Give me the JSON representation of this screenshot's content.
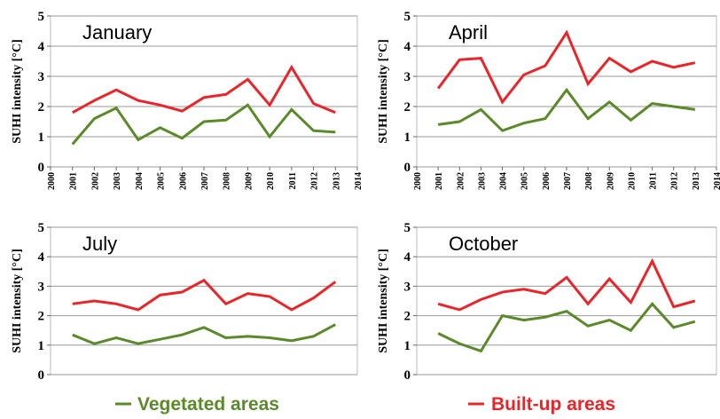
{
  "chart_data": [
    {
      "type": "line",
      "title": "January",
      "ylabel": "SUHI intensity [°C]",
      "x": [
        2001,
        2002,
        2003,
        2004,
        2005,
        2006,
        2007,
        2008,
        2009,
        2010,
        2011,
        2012,
        2013
      ],
      "series": [
        {
          "name": "Vegetated areas",
          "color": "#5a8a2a",
          "values": [
            0.75,
            1.6,
            1.95,
            0.9,
            1.3,
            0.95,
            1.5,
            1.55,
            2.05,
            1.0,
            1.9,
            1.2,
            1.15
          ]
        },
        {
          "name": "Built-up areas",
          "color": "#e8262a",
          "values": [
            1.8,
            2.2,
            2.55,
            2.2,
            2.05,
            1.85,
            2.3,
            2.4,
            2.9,
            2.05,
            3.3,
            2.1,
            1.8
          ]
        }
      ],
      "xlim": [
        2000,
        2014
      ],
      "xticks": [
        2000,
        2001,
        2002,
        2003,
        2004,
        2005,
        2006,
        2007,
        2008,
        2009,
        2010,
        2011,
        2012,
        2013,
        2014
      ],
      "ylim": [
        0,
        5
      ],
      "yticks": [
        0,
        1,
        2,
        3,
        4,
        5
      ],
      "grid": true
    },
    {
      "type": "line",
      "title": "April",
      "ylabel": "SUHI intensity [°C]",
      "x": [
        2001,
        2002,
        2003,
        2004,
        2005,
        2006,
        2007,
        2008,
        2009,
        2010,
        2011,
        2012,
        2013
      ],
      "series": [
        {
          "name": "Vegetated areas",
          "color": "#5a8a2a",
          "values": [
            1.4,
            1.5,
            1.9,
            1.2,
            1.45,
            1.6,
            2.55,
            1.6,
            2.15,
            1.55,
            2.1,
            2.0,
            1.9
          ]
        },
        {
          "name": "Built-up areas",
          "color": "#e8262a",
          "values": [
            2.6,
            3.55,
            3.6,
            2.15,
            3.05,
            3.35,
            4.45,
            2.75,
            3.6,
            3.15,
            3.5,
            3.3,
            3.45
          ]
        }
      ],
      "xlim": [
        2000,
        2014
      ],
      "xticks": [
        2000,
        2001,
        2002,
        2003,
        2004,
        2005,
        2006,
        2007,
        2008,
        2009,
        2010,
        2011,
        2012,
        2013,
        2014
      ],
      "ylim": [
        0,
        5
      ],
      "yticks": [
        0,
        1,
        2,
        3,
        4,
        5
      ],
      "grid": true
    },
    {
      "type": "line",
      "title": "July",
      "ylabel": "SUHI intensity [°C]",
      "x": [
        2001,
        2002,
        2003,
        2004,
        2005,
        2006,
        2007,
        2008,
        2009,
        2010,
        2011,
        2012,
        2013
      ],
      "series": [
        {
          "name": "Vegetated areas",
          "color": "#5a8a2a",
          "values": [
            1.35,
            1.05,
            1.25,
            1.05,
            1.2,
            1.35,
            1.6,
            1.25,
            1.3,
            1.25,
            1.15,
            1.3,
            1.7
          ]
        },
        {
          "name": "Built-up areas",
          "color": "#e8262a",
          "values": [
            2.4,
            2.5,
            2.4,
            2.2,
            2.7,
            2.8,
            3.2,
            2.4,
            2.75,
            2.65,
            2.2,
            2.6,
            3.15
          ]
        }
      ],
      "xlim": [
        2000,
        2014
      ],
      "ylim": [
        0,
        5
      ],
      "yticks": [
        0,
        1,
        2,
        3,
        4,
        5
      ],
      "grid": true
    },
    {
      "type": "line",
      "title": "October",
      "ylabel": "SUHI intensity [°C]",
      "x": [
        2001,
        2002,
        2003,
        2004,
        2005,
        2006,
        2007,
        2008,
        2009,
        2010,
        2011,
        2012,
        2013
      ],
      "series": [
        {
          "name": "Vegetated areas",
          "color": "#5a8a2a",
          "values": [
            1.4,
            1.05,
            0.8,
            2.0,
            1.85,
            1.95,
            2.15,
            1.65,
            1.85,
            1.5,
            2.4,
            1.6,
            1.8
          ]
        },
        {
          "name": "Built-up areas",
          "color": "#e8262a",
          "values": [
            2.4,
            2.2,
            2.55,
            2.8,
            2.9,
            2.75,
            3.3,
            2.4,
            3.25,
            2.45,
            3.85,
            2.3,
            2.5
          ]
        }
      ],
      "xlim": [
        2000,
        2014
      ],
      "ylim": [
        0,
        5
      ],
      "yticks": [
        0,
        1,
        2,
        3,
        4,
        5
      ],
      "grid": true
    }
  ]
}
